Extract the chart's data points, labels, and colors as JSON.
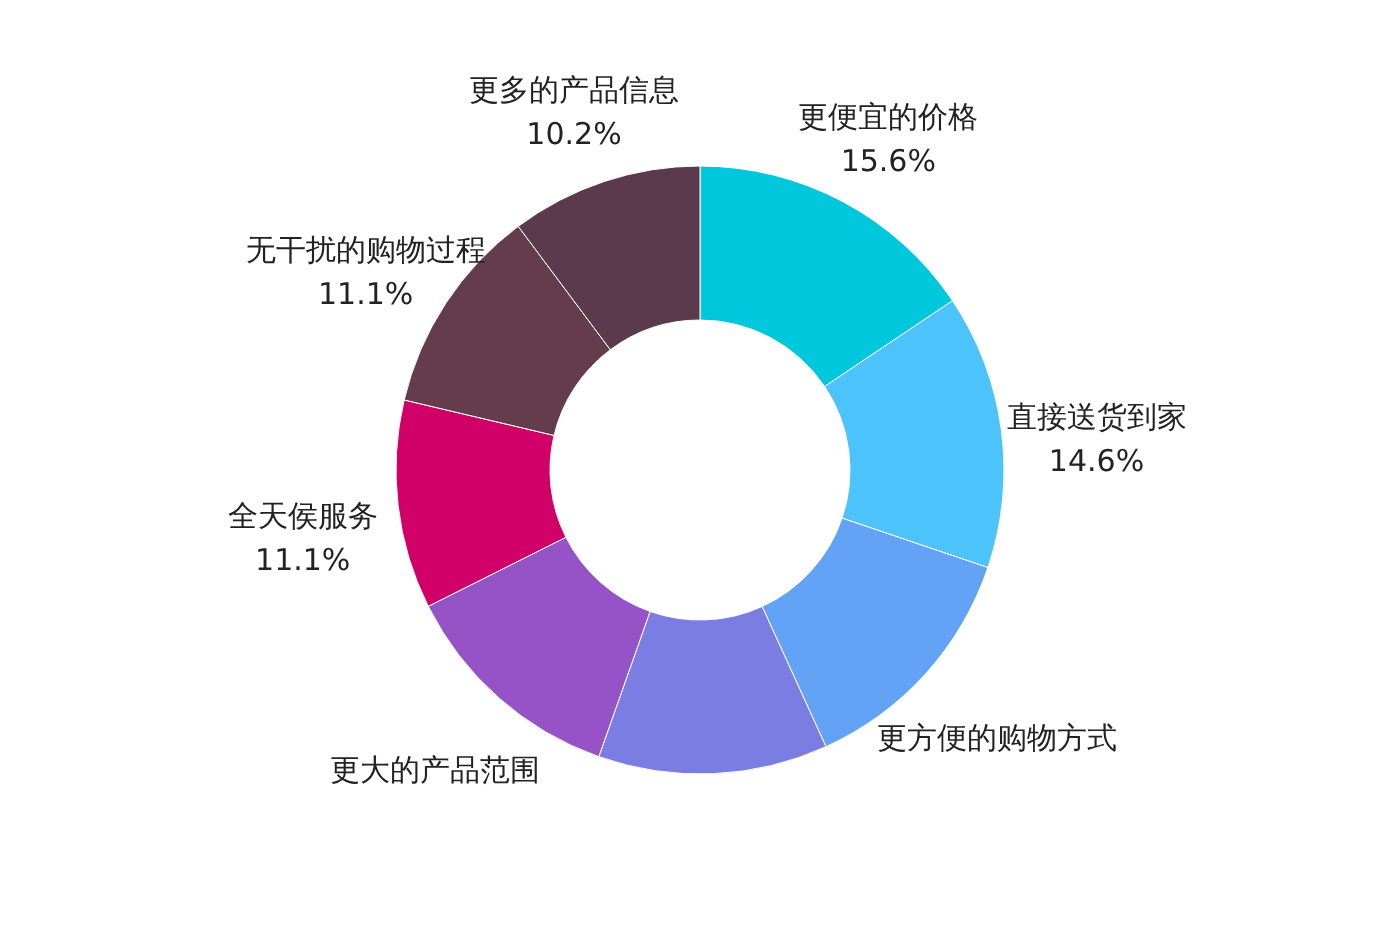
{
  "chart_data": {
    "type": "donut",
    "categories": [
      "更便宜的价格",
      "直接送货到家",
      "更方便的购物方式",
      null,
      "更大的产品范围",
      "全天侯服务",
      "无干扰的购物过程",
      "更多的产品信息"
    ],
    "values": [
      15.6,
      14.6,
      13.0,
      12.2,
      12.2,
      11.1,
      11.1,
      10.2
    ],
    "value_labels": [
      "15.6%",
      "14.6%",
      null,
      null,
      null,
      "11.1%",
      "11.1%",
      "10.2%"
    ],
    "colors": [
      "#00c8dc",
      "#4cc3fa",
      "#62a3f5",
      "#7b7de3",
      "#9553c7",
      "#d10069",
      "#643c4c",
      "#5b3a4e"
    ]
  }
}
